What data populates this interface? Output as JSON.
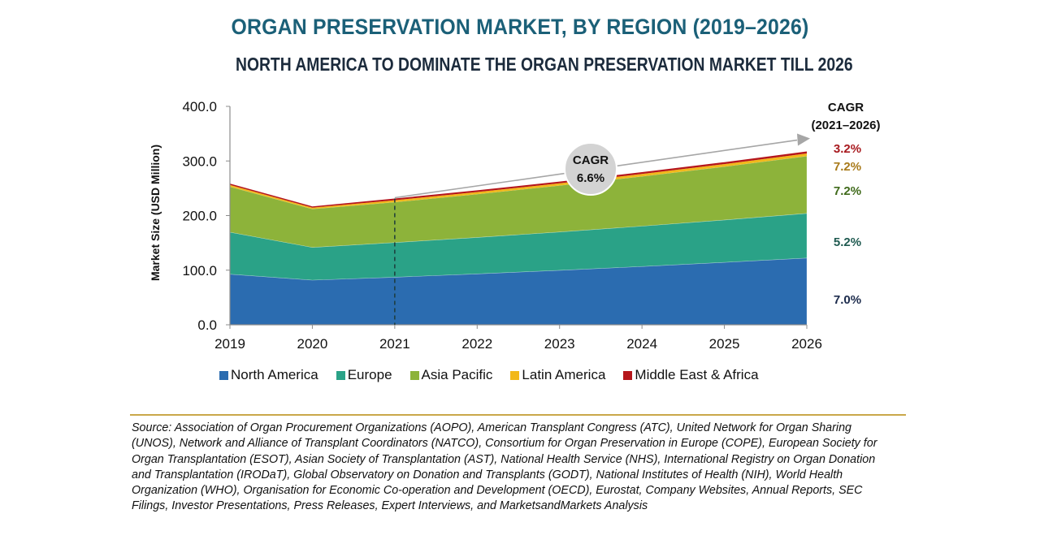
{
  "header": {
    "title": "ORGAN PRESERVATION MARKET, BY REGION (2019–2026)",
    "subtitle": "NORTH AMERICA TO DOMINATE THE ORGAN PRESERVATION MARKET TILL 2026"
  },
  "chart_data": {
    "type": "area",
    "stacked": true,
    "title": "ORGAN PRESERVATION MARKET, BY REGION (2019–2026)",
    "subtitle": "NORTH AMERICA TO DOMINATE THE ORGAN PRESERVATION MARKET TILL 2026",
    "xlabel": "",
    "ylabel": "Market Size (USD Million)",
    "ylim": [
      0,
      400
    ],
    "yticks": [
      "0.0",
      "100.0",
      "200.0",
      "300.0",
      "400.0"
    ],
    "ytick_values": [
      0,
      100,
      200,
      300,
      400
    ],
    "categories": [
      "2019",
      "2020",
      "2021",
      "2022",
      "2023",
      "2024",
      "2025",
      "2026"
    ],
    "grid": false,
    "legend_position": "bottom",
    "series": [
      {
        "name": "North America",
        "color": "#2b6cb0",
        "values": [
          92.6,
          81.8,
          87.2,
          93.3,
          99.8,
          106.8,
          114.3,
          122.3
        ],
        "cagr": "7.0%",
        "cagr_color": "#1c2b4c"
      },
      {
        "name": "Europe",
        "color": "#2aa287",
        "values": [
          76.9,
          59.9,
          63.4,
          66.7,
          70.2,
          73.8,
          77.7,
          81.7
        ],
        "cagr": "5.2%",
        "cagr_color": "#1f5a50"
      },
      {
        "name": "Asia Pacific",
        "color": "#8db33a",
        "values": [
          83.5,
          70.3,
          74.0,
          79.3,
          85.0,
          91.2,
          97.7,
          104.8
        ],
        "cagr": "7.2%",
        "cagr_color": "#3f6a1a"
      },
      {
        "name": "Latin America",
        "color": "#f2b81a",
        "values": [
          3.0,
          2.6,
          3.5,
          3.8,
          4.0,
          4.3,
          4.6,
          5.0
        ],
        "cagr": "7.2%",
        "cagr_color": "#a87a1a"
      },
      {
        "name": "Middle East & Africa",
        "color": "#b5161b",
        "values": [
          2.6,
          2.2,
          3.1,
          3.2,
          3.3,
          3.4,
          3.5,
          3.6
        ],
        "cagr": "3.2%",
        "cagr_color": "#a81a1f"
      }
    ],
    "annotations": {
      "cagr_header_line1": "CAGR",
      "cagr_header_line2": "(2021–2026)",
      "overall_cagr_label": "CAGR",
      "overall_cagr_value": "6.6%",
      "reference_year": "2021"
    }
  },
  "source_text": "Source: Association of Organ Procurement Organizations (AOPO), American Transplant Congress (ATC), United Network for Organ Sharing (UNOS), Network and Alliance of Transplant Coordinators (NATCO), Consortium for Organ Preservation in Europe (COPE), European Society for Organ Transplantation (ESOT), Asian Society of Transplantation (AST), National Health Service (NHS), International Registry on Organ Donation and Transplantation (IRODaT), Global Observatory on Donation and Transplants (GODT), National Institutes of Health (NIH), World Health Organization (WHO), Organisation for Economic Co-operation and Development (OECD), Eurostat, Company Websites, Annual Reports, SEC Filings, Investor Presentations, Press Releases, Expert Interviews, and MarketsandMarkets Analysis"
}
